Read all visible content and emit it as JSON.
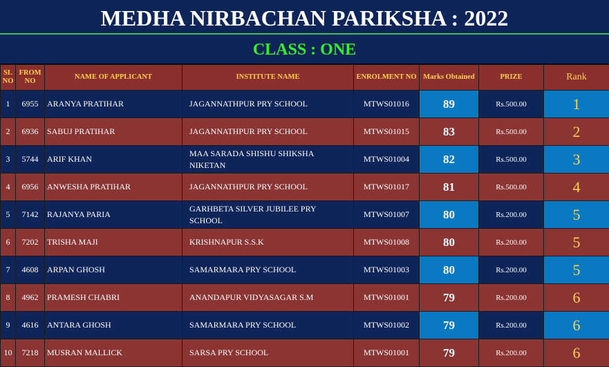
{
  "title": "MEDHA NIRBACHAN PARIKSHA : 2022",
  "subtitle": "CLASS : ONE",
  "headers": {
    "sl": "SL NO",
    "from": "FROM NO",
    "name": "NAME OF APPLICANT",
    "institute": "INSTITUTE  NAME",
    "enrolment": "ENROLMENT NO",
    "marks": "Marks Obtained",
    "prize": "PRIZE",
    "rank": "Rank"
  },
  "rows": [
    {
      "sl": "1",
      "from": "6955",
      "name": "ARANYA PRATIHAR",
      "institute": "JAGANNATHPUR PRY SCHOOL",
      "enrolment": "MTWS01016",
      "marks": "89",
      "prize": "Rs.500.00",
      "rank": "1"
    },
    {
      "sl": "2",
      "from": "6936",
      "name": "SABUJ PRATIHAR",
      "institute": "JAGANNATHPUR PRY SCHOOL",
      "enrolment": "MTWS01015",
      "marks": "83",
      "prize": "Rs.500.00",
      "rank": "2"
    },
    {
      "sl": "3",
      "from": "5744",
      "name": "ARIF KHAN",
      "institute": "MAA SARADA SHISHU SHIKSHA NIKETAN",
      "enrolment": "MTWS01004",
      "marks": "82",
      "prize": "Rs.500.00",
      "rank": "3"
    },
    {
      "sl": "4",
      "from": "6956",
      "name": "ANWESHA PRATIHAR",
      "institute": "JAGANNATHPUR PRY SCHOOL",
      "enrolment": "MTWS01017",
      "marks": "81",
      "prize": "Rs.500.00",
      "rank": "4"
    },
    {
      "sl": "5",
      "from": "7142",
      "name": "RAJANYA PARIA",
      "institute": "GARHBETA SILVER JUBILEE PRY SCHOOL",
      "enrolment": "MTWS01007",
      "marks": "80",
      "prize": "Rs.200.00",
      "rank": "5"
    },
    {
      "sl": "6",
      "from": "7202",
      "name": "TRISHA MAJI",
      "institute": "KRISHNAPUR S.S.K",
      "enrolment": "MTWS01008",
      "marks": "80",
      "prize": "Rs.200.00",
      "rank": "5"
    },
    {
      "sl": "7",
      "from": "4608",
      "name": "ARPAN GHOSH",
      "institute": "SAMARMARA PRY SCHOOL",
      "enrolment": "MTWS01003",
      "marks": "80",
      "prize": "Rs.200.00",
      "rank": "5"
    },
    {
      "sl": "8",
      "from": "4962",
      "name": "PRAMESH CHABRI",
      "institute": "ANANDAPUR VIDYASAGAR S.M",
      "enrolment": "MTWS01001",
      "marks": "79",
      "prize": "Rs.200.00",
      "rank": "6"
    },
    {
      "sl": "9",
      "from": "4616",
      "name": "ANTARA GHOSH",
      "institute": "SAMARMARA PRY SCHOOL",
      "enrolment": "MTWS01002",
      "marks": "79",
      "prize": "Rs.200.00",
      "rank": "6"
    },
    {
      "sl": "10",
      "from": "7218",
      "name": "MUSRAN MALLICK",
      "institute": "SARSA PRY SCHOOL",
      "enrolment": "MTWS01001",
      "marks": "79",
      "prize": "Rs.200.00",
      "rank": "6"
    }
  ],
  "colors": {
    "navy": "#0f2458",
    "maroon": "#8b3434",
    "highlight_blue": "#0a79c4",
    "title_green": "#33f22a",
    "header_gold": "#ffd24a"
  }
}
